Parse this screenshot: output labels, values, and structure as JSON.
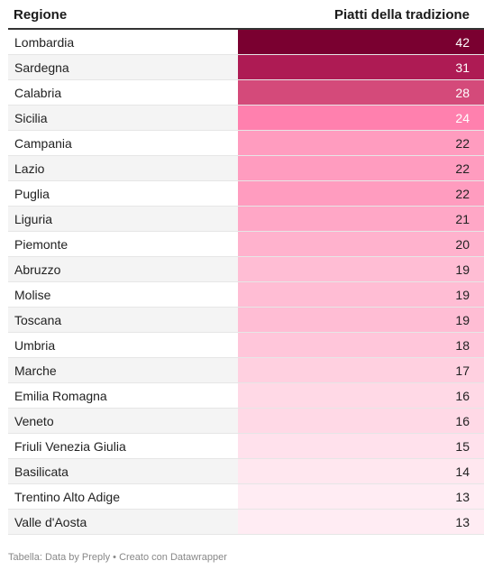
{
  "chart_data": {
    "type": "table",
    "columns": [
      "Regione",
      "Piatti della tradizione"
    ],
    "rows": [
      {
        "region": "Lombardia",
        "value": 42,
        "color": "#7a0030"
      },
      {
        "region": "Sardegna",
        "value": 31,
        "color": "#ae1b54"
      },
      {
        "region": "Calabria",
        "value": 28,
        "color": "#d44a7a"
      },
      {
        "region": "Sicilia",
        "value": 24,
        "color": "#ff80ae"
      },
      {
        "region": "Campania",
        "value": 22,
        "color": "#ff9cbf"
      },
      {
        "region": "Lazio",
        "value": 22,
        "color": "#ff9cbf"
      },
      {
        "region": "Puglia",
        "value": 22,
        "color": "#ff9cbf"
      },
      {
        "region": "Liguria",
        "value": 21,
        "color": "#ffa7c6"
      },
      {
        "region": "Piemonte",
        "value": 20,
        "color": "#ffb2cd"
      },
      {
        "region": "Abruzzo",
        "value": 19,
        "color": "#ffbdd4"
      },
      {
        "region": "Molise",
        "value": 19,
        "color": "#ffbdd4"
      },
      {
        "region": "Toscana",
        "value": 19,
        "color": "#ffbdd4"
      },
      {
        "region": "Umbria",
        "value": 18,
        "color": "#ffc6da"
      },
      {
        "region": "Marche",
        "value": 17,
        "color": "#ffd0e0"
      },
      {
        "region": "Emilia Romagna",
        "value": 16,
        "color": "#ffd9e6"
      },
      {
        "region": "Veneto",
        "value": 16,
        "color": "#ffd9e6"
      },
      {
        "region": "Friuli Venezia Giulia",
        "value": 15,
        "color": "#ffe1ec"
      },
      {
        "region": "Basilicata",
        "value": 14,
        "color": "#ffe7ef"
      },
      {
        "region": "Trentino Alto Adige",
        "value": 13,
        "color": "#ffecf3"
      },
      {
        "region": "Valle d'Aosta",
        "value": 13,
        "color": "#ffecf3"
      }
    ]
  },
  "footer": {
    "text": "Tabella: Data by Preply • Creato con Datawrapper"
  }
}
